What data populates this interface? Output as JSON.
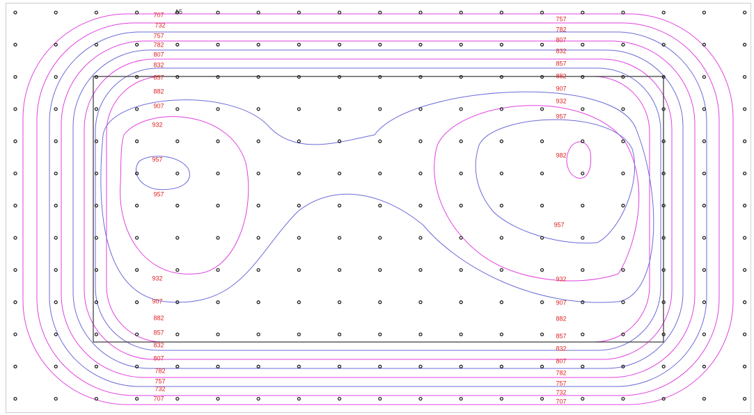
{
  "chart_data": {
    "type": "contour",
    "grid_points": {
      "columns": 19,
      "rows": 13,
      "symbol": "open-circle"
    },
    "point_label": "A5",
    "inner_rectangle": true,
    "colors": {
      "contour_blue": "#6a6ad8",
      "contour_magenta": "#e040e0",
      "label_red": "#e02020",
      "point": "#222222",
      "rectangle": "#333333",
      "frame": "#cccccc"
    },
    "levels": [
      {
        "value": "707",
        "color": "magenta"
      },
      {
        "value": "732",
        "color": "magenta"
      },
      {
        "value": "757",
        "color": "blue"
      },
      {
        "value": "782",
        "color": "magenta"
      },
      {
        "value": "807",
        "color": "blue"
      },
      {
        "value": "832",
        "color": "magenta"
      },
      {
        "value": "857",
        "color": "blue"
      },
      {
        "value": "882",
        "color": "magenta"
      },
      {
        "value": "907",
        "color": "blue"
      },
      {
        "value": "932",
        "color": "magenta"
      },
      {
        "value": "957",
        "color": "blue"
      },
      {
        "value": "982",
        "color": "magenta"
      }
    ],
    "contour_labels": [
      "707",
      "732",
      "757",
      "782",
      "807",
      "832",
      "857",
      "882",
      "907",
      "932",
      "957",
      "957",
      "932",
      "907",
      "882",
      "857",
      "832",
      "807",
      "782",
      "757",
      "732",
      "707",
      "757",
      "782",
      "807",
      "832",
      "857",
      "882",
      "907",
      "932",
      "957",
      "982",
      "957",
      "932",
      "907",
      "882",
      "857",
      "832",
      "807",
      "782",
      "757",
      "732",
      "707"
    ]
  }
}
